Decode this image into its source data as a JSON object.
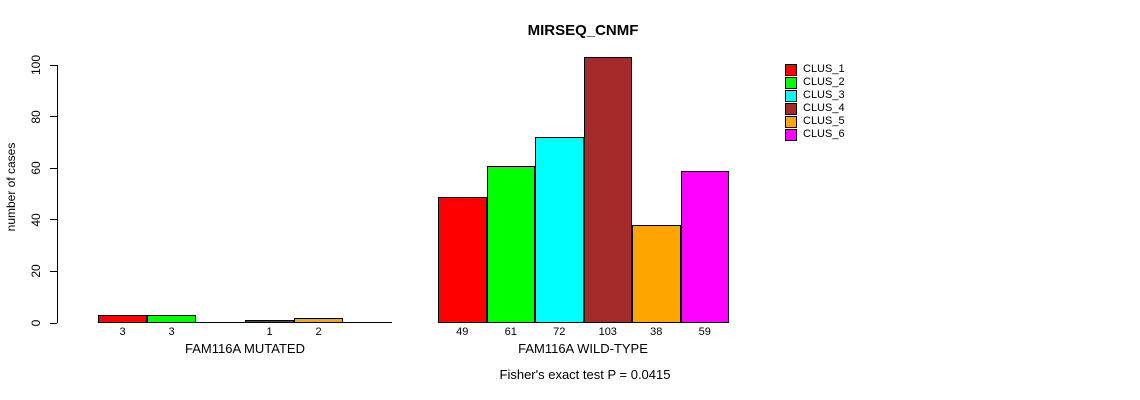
{
  "title": "MIRSEQ_CNMF",
  "footer": "Fisher's exact test P = 0.0415",
  "chart_data": {
    "type": "bar",
    "title": "MIRSEQ_CNMF",
    "ylabel": "number of cases",
    "xlabel": "",
    "ylim": [
      0,
      100
    ],
    "yticks": [
      0,
      20,
      40,
      60,
      80,
      100
    ],
    "grid": false,
    "legend_position": "right",
    "categories": [
      "FAM116A MUTATED",
      "FAM116A WILD-TYPE"
    ],
    "series": [
      {
        "name": "CLUS_1",
        "color": "#FF0000",
        "values": [
          3,
          49
        ]
      },
      {
        "name": "CLUS_2",
        "color": "#00FF00",
        "values": [
          3,
          61
        ]
      },
      {
        "name": "CLUS_3",
        "color": "#00FFFF",
        "values": [
          0,
          72
        ]
      },
      {
        "name": "CLUS_4",
        "color": "#A52A2A",
        "values": [
          1,
          103
        ]
      },
      {
        "name": "CLUS_5",
        "color": "#FFA500",
        "values": [
          2,
          38
        ]
      },
      {
        "name": "CLUS_6",
        "color": "#FF00FF",
        "values": [
          0,
          59
        ]
      }
    ],
    "bar_value_labels": [
      [
        "3",
        "3",
        "",
        "1",
        "2",
        ""
      ],
      [
        "49",
        "61",
        "72",
        "103",
        "38",
        "59"
      ]
    ],
    "annotation": "Fisher's exact test P = 0.0415"
  }
}
